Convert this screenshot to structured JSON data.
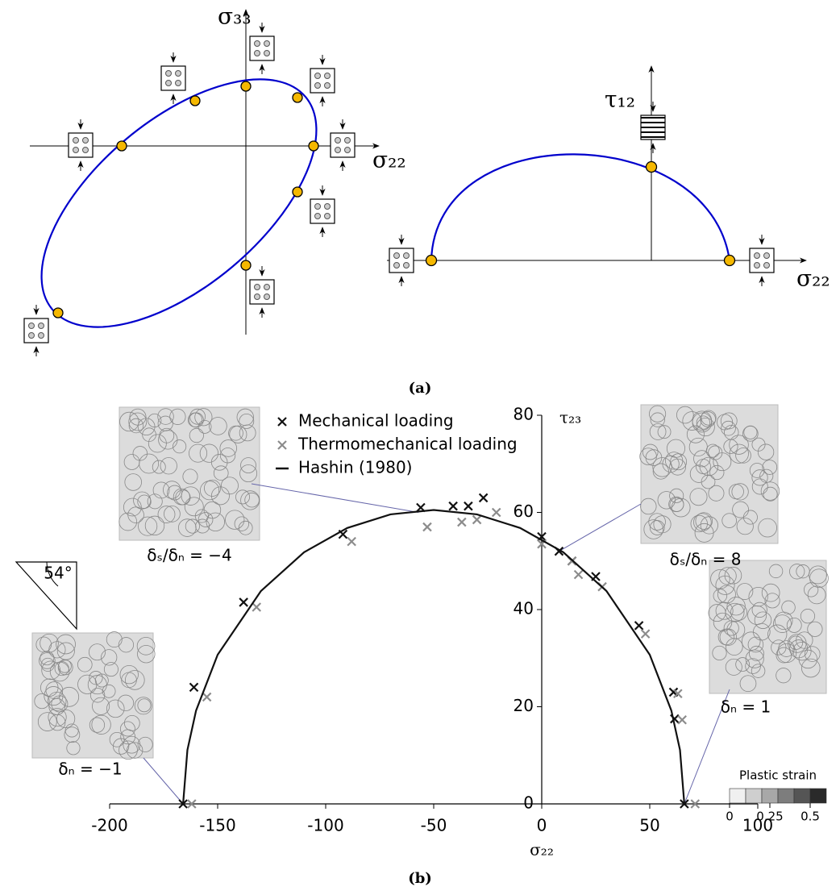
{
  "panel_a": {
    "left_y_label": "σ₃₃",
    "left_x_label": "σ₂₂",
    "right_y_label": "τ₁₂",
    "right_x_label": "σ₂₂",
    "caption": "(a)"
  },
  "chart_data": {
    "type": "scatter",
    "caption": "(b)",
    "xlabel": "σ₂₂",
    "ylabel": "τ₂₃",
    "xlim": [
      -200,
      100
    ],
    "xticks": [
      -200,
      -150,
      -100,
      -50,
      0,
      50,
      100
    ],
    "ylim": [
      0,
      80
    ],
    "yticks": [
      0,
      20,
      40,
      60,
      80
    ],
    "series": [
      {
        "name": "Mechanical loading",
        "color": "#111111",
        "marker": "x",
        "x": [
          -166,
          -161,
          -138,
          -92,
          -56,
          -41,
          -34,
          -27,
          0,
          8,
          14,
          25,
          45,
          61,
          61.5,
          66
        ],
        "values": [
          0,
          24,
          41.5,
          55.5,
          61,
          61.3,
          61.3,
          63,
          55,
          52,
          50,
          46.8,
          36.7,
          23,
          17.5,
          0
        ]
      },
      {
        "name": "Thermomechanical loading",
        "color": "#8c8c8c",
        "marker": "x",
        "x": [
          -162,
          -155,
          -132,
          -88,
          -53,
          -37,
          -30,
          -21,
          0,
          14,
          17,
          28,
          48,
          63,
          65,
          71
        ],
        "values": [
          0,
          22,
          40.5,
          54,
          57,
          58,
          58.5,
          60,
          53.5,
          50,
          47.2,
          44.7,
          35,
          22.7,
          17.3,
          0
        ]
      },
      {
        "name": "Hashin (1980)",
        "color": "#111111",
        "marker": "line",
        "x": [
          -166,
          -164,
          -160,
          -150,
          -130,
          -110,
          -90,
          -70,
          -50,
          -30,
          -10,
          10,
          30,
          50,
          60,
          64,
          66
        ],
        "values": [
          0,
          11.1,
          19.2,
          30.7,
          43.8,
          51.8,
          56.8,
          59.6,
          60.5,
          59.6,
          56.8,
          51.8,
          43.8,
          30.7,
          19.2,
          11.1,
          0
        ]
      }
    ],
    "annotations": [
      "δₛ/δₙ = −4",
      "δₛ/δₙ = 8",
      "δₙ = 1",
      "δₙ = −1",
      "54°"
    ],
    "colorbar": {
      "label": "Plastic strain",
      "lim": [
        0,
        0.6
      ],
      "ticks": [
        0,
        0.25,
        0.5
      ],
      "colors": [
        "#f0f0f0",
        "#cfcfcf",
        "#a8a8a8",
        "#7d7d7d",
        "#555555",
        "#2a2a2a"
      ]
    }
  }
}
